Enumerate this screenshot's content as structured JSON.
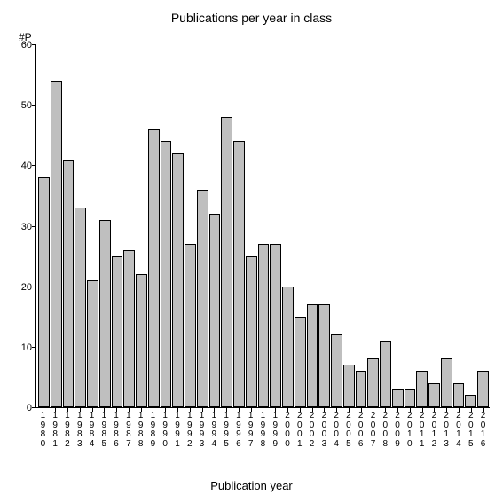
{
  "chart": {
    "type": "bar",
    "title": "Publications per year in class",
    "y_axis_label": "#P",
    "x_axis_label": "Publication year",
    "title_fontsize": 14,
    "axis_label_fontsize": 13,
    "tick_fontsize": 11,
    "x_tick_fontsize": 10,
    "bar_fill": "#bfbfbf",
    "bar_border": "#000000",
    "background_color": "#ffffff",
    "axis_color": "#000000",
    "ylim": [
      0,
      60
    ],
    "y_ticks": [
      0,
      10,
      20,
      30,
      40,
      50,
      60
    ],
    "categories": [
      "1980",
      "1981",
      "1982",
      "1983",
      "1984",
      "1985",
      "1986",
      "1987",
      "1988",
      "1989",
      "1990",
      "1991",
      "1992",
      "1993",
      "1994",
      "1995",
      "1996",
      "1997",
      "1998",
      "1999",
      "2000",
      "2001",
      "2002",
      "2003",
      "2004",
      "2005",
      "2006",
      "2007",
      "2008",
      "2009",
      "2010",
      "2011",
      "2012",
      "2013",
      "2014",
      "2015",
      "2016"
    ],
    "values": [
      38,
      54,
      41,
      33,
      21,
      31,
      25,
      26,
      22,
      46,
      44,
      42,
      27,
      36,
      32,
      48,
      44,
      25,
      27,
      27,
      20,
      15,
      17,
      17,
      12,
      7,
      6,
      8,
      11,
      3,
      3,
      6,
      4,
      8,
      4,
      2,
      6
    ]
  }
}
